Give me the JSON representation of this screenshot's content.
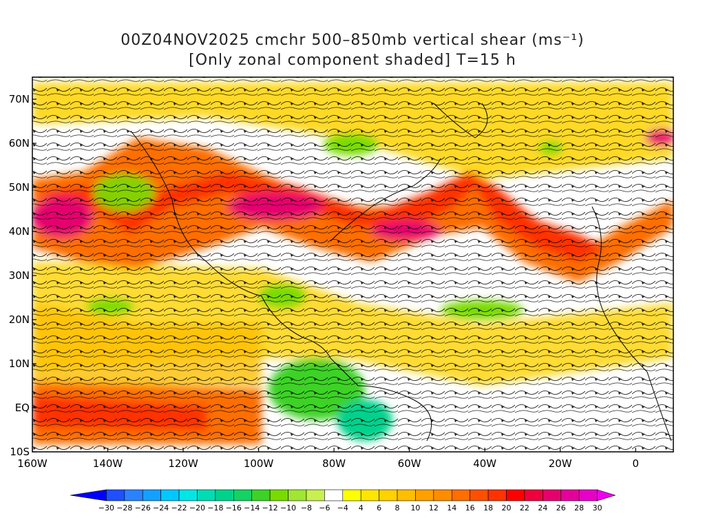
{
  "header": {
    "title_line1": "00Z04NOV2025 cmchr 500–850mb vertical shear (ms⁻¹)",
    "title_line2": "[Only zonal component shaded] T=15 h"
  },
  "map": {
    "lon_range": [
      -160,
      10
    ],
    "lat_range": [
      -10,
      75
    ],
    "lon_ticks": [
      "160W",
      "140W",
      "120W",
      "100W",
      "80W",
      "60W",
      "40W",
      "20W",
      "0"
    ],
    "lat_ticks": [
      "70N",
      "60N",
      "50N",
      "40N",
      "30N",
      "20N",
      "10N",
      "EQ",
      "10S"
    ]
  },
  "colorbar": {
    "labels": [
      "-30",
      "-28",
      "-26",
      "-24",
      "-22",
      "-20",
      "-18",
      "-16",
      "-14",
      "-12",
      "-10",
      "-8",
      "-6",
      "-4",
      "4",
      "6",
      "8",
      "10",
      "12",
      "14",
      "16",
      "18",
      "20",
      "22",
      "24",
      "26",
      "28",
      "30"
    ],
    "colors": [
      "#0000ff",
      "#1e50ff",
      "#2a82ff",
      "#14a0ff",
      "#00c8ff",
      "#00e6e6",
      "#00dcb4",
      "#00d28c",
      "#14d264",
      "#3cd228",
      "#78dc00",
      "#a0e632",
      "#c8f050",
      "#ffffff",
      "#ffff00",
      "#ffe600",
      "#ffd200",
      "#ffbe00",
      "#ffa000",
      "#ff8c00",
      "#ff6e00",
      "#ff5000",
      "#ff3200",
      "#ff0000",
      "#f0003c",
      "#e6006e",
      "#e6009b",
      "#e600c8",
      "#f000f0"
    ]
  }
}
